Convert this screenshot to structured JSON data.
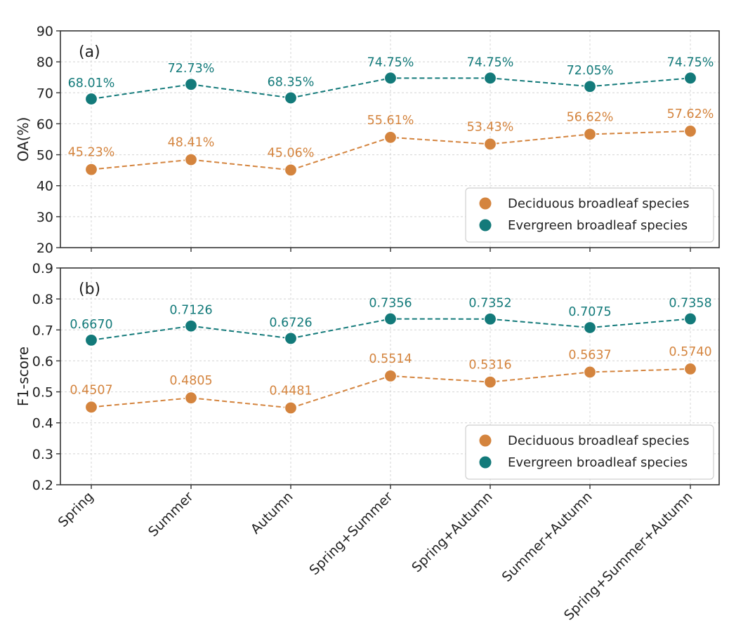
{
  "chart_data": [
    {
      "type": "line",
      "panel_label": "(a)",
      "title": "",
      "xlabel": "",
      "ylabel": "OA(%)",
      "ylim": [
        20,
        90
      ],
      "yticks": [
        "20",
        "30",
        "40",
        "50",
        "60",
        "70",
        "80",
        "90"
      ],
      "ytick_values": [
        20,
        30,
        40,
        50,
        60,
        70,
        80,
        90
      ],
      "grid": true,
      "legend_position": "bottom-right",
      "categories": [
        "Spring",
        "Summer",
        "Autumn",
        "Spring+Summer",
        "Spring+Autumn",
        "Summer+Autumn",
        "Spring+Summer+Autumn"
      ],
      "series": [
        {
          "name": "Deciduous broadleaf species",
          "color": "#d4843e",
          "values": [
            45.23,
            48.41,
            45.06,
            55.61,
            53.43,
            56.62,
            57.62
          ],
          "labels": [
            "45.23%",
            "48.41%",
            "45.06%",
            "55.61%",
            "53.43%",
            "56.62%",
            "57.62%"
          ]
        },
        {
          "name": "Evergreen broadleaf species",
          "color": "#137a7a",
          "values": [
            68.01,
            72.73,
            68.35,
            74.75,
            74.75,
            72.05,
            74.75
          ],
          "labels": [
            "68.01%",
            "72.73%",
            "68.35%",
            "74.75%",
            "74.75%",
            "72.05%",
            "74.75%"
          ]
        }
      ]
    },
    {
      "type": "line",
      "panel_label": "(b)",
      "title": "",
      "xlabel": "",
      "ylabel": "F1-score",
      "ylim": [
        0.2,
        0.9
      ],
      "yticks": [
        "0.2",
        "0.3",
        "0.4",
        "0.5",
        "0.6",
        "0.7",
        "0.8",
        "0.9"
      ],
      "ytick_values": [
        0.2,
        0.3,
        0.4,
        0.5,
        0.6,
        0.7,
        0.8,
        0.9
      ],
      "grid": true,
      "legend_position": "bottom-right",
      "categories": [
        "Spring",
        "Summer",
        "Autumn",
        "Spring+Summer",
        "Spring+Autumn",
        "Summer+Autumn",
        "Spring+Summer+Autumn"
      ],
      "series": [
        {
          "name": "Deciduous broadleaf species",
          "color": "#d4843e",
          "values": [
            0.4507,
            0.4805,
            0.4481,
            0.5514,
            0.5316,
            0.5637,
            0.574
          ],
          "labels": [
            "0.4507",
            "0.4805",
            "0.4481",
            "0.5514",
            "0.5316",
            "0.5637",
            "0.5740"
          ]
        },
        {
          "name": "Evergreen broadleaf species",
          "color": "#137a7a",
          "values": [
            0.667,
            0.7126,
            0.6726,
            0.7356,
            0.7352,
            0.7075,
            0.7358
          ],
          "labels": [
            "0.6670",
            "0.7126",
            "0.6726",
            "0.7356",
            "0.7352",
            "0.7075",
            "0.7358"
          ]
        }
      ]
    }
  ]
}
